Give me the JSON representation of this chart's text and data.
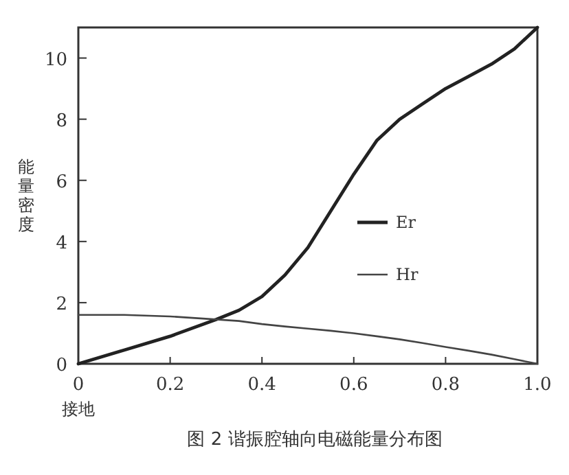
{
  "chart_data": {
    "type": "line",
    "title": "图 2 谐振腔轴向电磁能量分布图",
    "ylabel": "能量密度",
    "annotations": [
      "接地"
    ],
    "x": [
      0,
      0.1,
      0.2,
      0.3,
      0.35,
      0.4,
      0.45,
      0.5,
      0.55,
      0.6,
      0.65,
      0.7,
      0.75,
      0.8,
      0.85,
      0.9,
      0.95,
      1.0
    ],
    "series": [
      {
        "name": "Er",
        "color": "#222222",
        "values": [
          0,
          0.45,
          0.9,
          1.45,
          1.75,
          2.2,
          2.9,
          3.8,
          5.0,
          6.2,
          7.3,
          8.0,
          8.5,
          9.0,
          9.4,
          9.8,
          10.3,
          11
        ]
      },
      {
        "name": "Hr",
        "color": "#444444",
        "values": [
          1.6,
          1.6,
          1.55,
          1.45,
          1.4,
          1.3,
          1.22,
          1.15,
          1.08,
          1.0,
          0.9,
          0.8,
          0.68,
          0.55,
          0.43,
          0.3,
          0.15,
          0
        ]
      }
    ],
    "xlim": [
      0,
      1
    ],
    "ylim": [
      0,
      11
    ],
    "xticks": [
      0,
      0.2,
      0.4,
      0.6,
      0.8,
      {
        "value": 1,
        "label": "1.0"
      }
    ],
    "yticks": [
      0,
      2,
      4,
      6,
      8,
      10
    ],
    "legend": "right",
    "grid": false
  }
}
